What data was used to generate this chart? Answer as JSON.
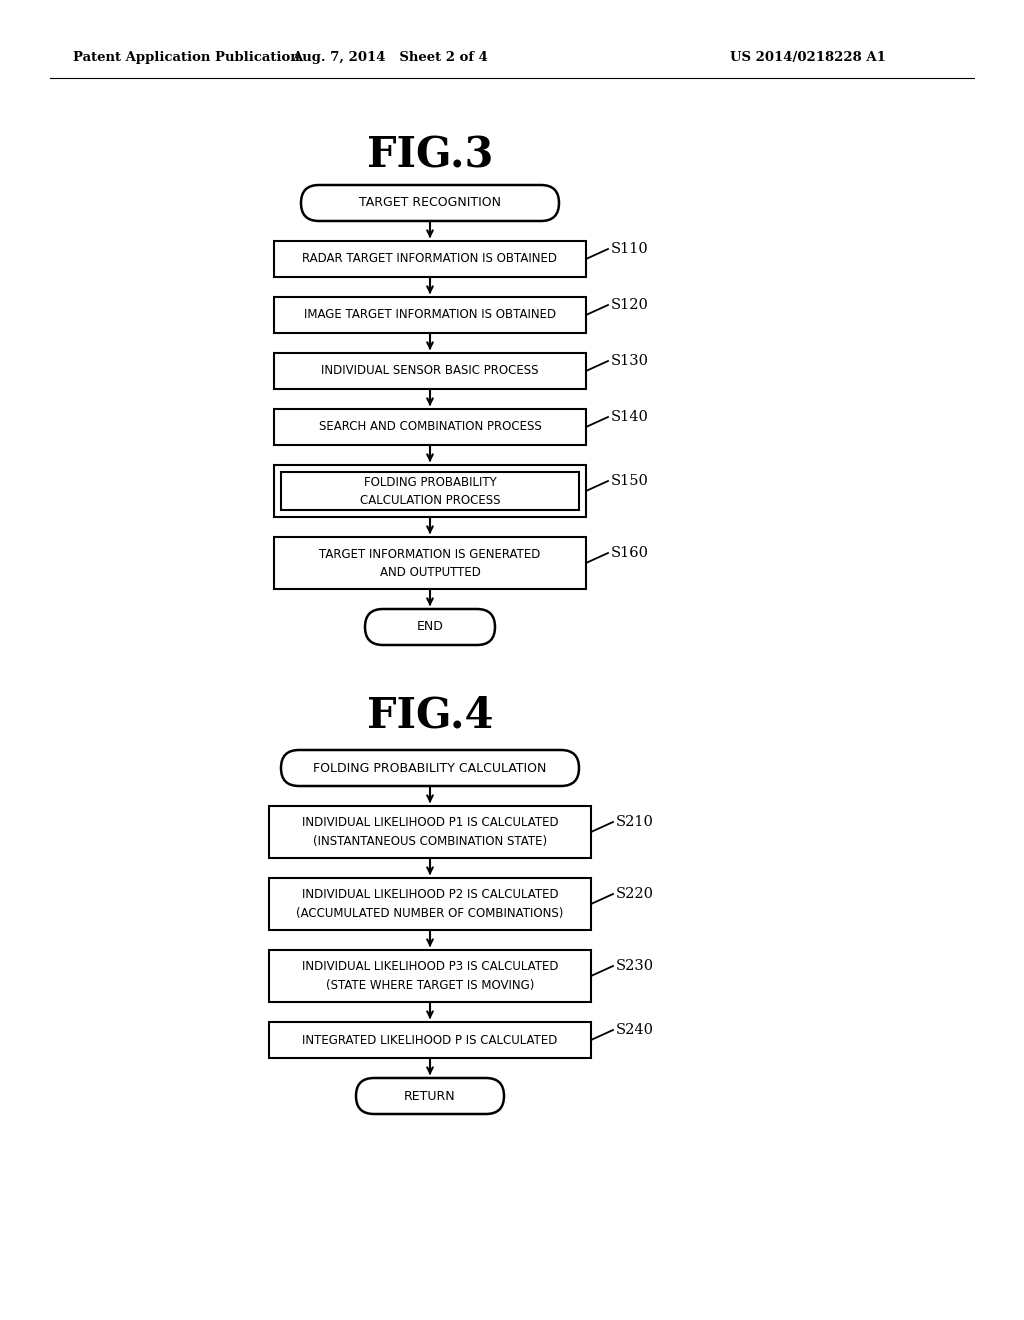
{
  "bg_color": "#ffffff",
  "header_left": "Patent Application Publication",
  "header_mid": "Aug. 7, 2014   Sheet 2 of 4",
  "header_right": "US 2014/0218228 A1",
  "fig3_title": "FIG.3",
  "fig4_title": "FIG.4",
  "fig3": {
    "start_label": "TARGET RECOGNITION",
    "steps": [
      {
        "label": "RADAR TARGET INFORMATION IS OBTAINED",
        "step_id": "S110",
        "double_border": false,
        "two_line": false
      },
      {
        "label": "IMAGE TARGET INFORMATION IS OBTAINED",
        "step_id": "S120",
        "double_border": false,
        "two_line": false
      },
      {
        "label": "INDIVIDUAL SENSOR BASIC PROCESS",
        "step_id": "S130",
        "double_border": false,
        "two_line": false
      },
      {
        "label": "SEARCH AND COMBINATION PROCESS",
        "step_id": "S140",
        "double_border": false,
        "two_line": false
      },
      {
        "label": "FOLDING PROBABILITY\nCALCULATION PROCESS",
        "step_id": "S150",
        "double_border": true,
        "two_line": true
      },
      {
        "label": "TARGET INFORMATION IS GENERATED\nAND OUTPUTTED",
        "step_id": "S160",
        "double_border": false,
        "two_line": true
      }
    ],
    "end_label": "END"
  },
  "fig4": {
    "start_label": "FOLDING PROBABILITY CALCULATION",
    "steps": [
      {
        "label": "INDIVIDUAL LIKELIHOOD P1 IS CALCULATED\n(INSTANTANEOUS COMBINATION STATE)",
        "step_id": "S210",
        "double_border": false,
        "two_line": true
      },
      {
        "label": "INDIVIDUAL LIKELIHOOD P2 IS CALCULATED\n(ACCUMULATED NUMBER OF COMBINATIONS)",
        "step_id": "S220",
        "double_border": false,
        "two_line": true
      },
      {
        "label": "INDIVIDUAL LIKELIHOOD P3 IS CALCULATED\n(STATE WHERE TARGET IS MOVING)",
        "step_id": "S230",
        "double_border": false,
        "two_line": true
      },
      {
        "label": "INTEGRATED LIKELIHOOD P IS CALCULATED",
        "step_id": "S240",
        "double_border": false,
        "two_line": false
      }
    ],
    "end_label": "RETURN"
  }
}
